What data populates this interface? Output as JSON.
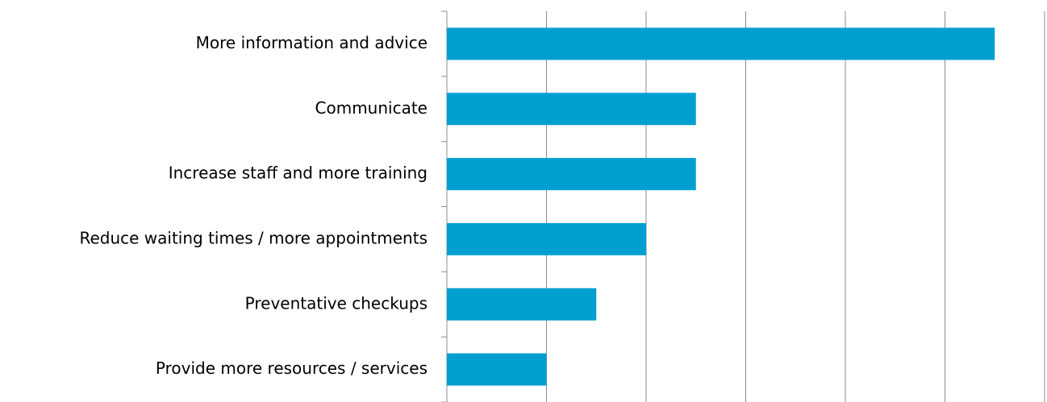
{
  "chart_data": {
    "type": "bar",
    "orientation": "horizontal",
    "categories": [
      "More information and advice",
      "Communicate",
      "Increase staff and more training",
      "Reduce waiting times / more appointments",
      "Preventative checkups",
      "Provide more resources / services"
    ],
    "values": [
      5.5,
      2.5,
      2.5,
      2,
      1.5,
      1
    ],
    "color": "#009fd1",
    "xlim": [
      0,
      6
    ],
    "xticks": [
      0,
      1,
      2,
      3,
      4,
      5,
      6
    ],
    "grid": true
  }
}
